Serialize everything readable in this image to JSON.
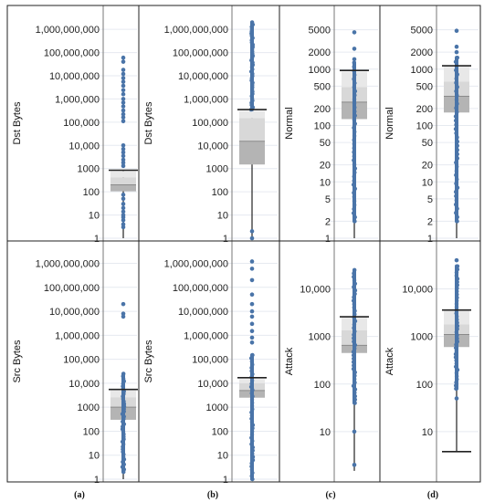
{
  "chart_data": [
    {
      "type": "box",
      "panel": "(a)",
      "ylabel": "Dst Bytes",
      "scale": "log",
      "ylim": [
        1,
        3000000000
      ],
      "ticks": [
        1,
        10,
        100,
        1000,
        10000,
        100000,
        1000000,
        10000000,
        100000000,
        1000000000
      ],
      "tick_labels": [
        "1",
        "10",
        "100",
        "1000",
        "10,000",
        "100,000",
        "1,000,000",
        "10,000,000",
        "100,000,000",
        "1,000,000,000"
      ],
      "grid": true,
      "box": {
        "whisker_low": 1,
        "q1": 105,
        "median": 200,
        "q3": 420,
        "whisker_high": 850,
        "light_top": 780
      },
      "outliers": [
        3,
        4,
        6,
        8,
        10,
        14,
        20,
        30,
        50,
        75,
        1300,
        1800,
        2400,
        3500,
        5000,
        7000,
        10000,
        110000,
        160000,
        220000,
        320000,
        480000,
        700000,
        1000000,
        1600000,
        2400000,
        3700000,
        5500000,
        8000000,
        12000000,
        18000000,
        40000000,
        60000000
      ]
    },
    {
      "type": "box",
      "panel": "(b)",
      "ylabel": "Dst Bytes",
      "scale": "log",
      "ylim": [
        1,
        3000000000
      ],
      "ticks": [
        1,
        10,
        100,
        1000,
        10000,
        100000,
        1000000,
        10000000,
        100000000,
        1000000000
      ],
      "tick_labels": [
        "1",
        "10",
        "100",
        "1000",
        "10,000",
        "100,000",
        "1,000,000",
        "10,000,000",
        "100,000,000",
        "1,000,000,000"
      ],
      "grid": true,
      "box": {
        "whisker_low": 1,
        "q1": 1500,
        "median": 15000,
        "q3": 150000,
        "whisker_high": 350000,
        "light_top": 300000
      },
      "outliers_dense_range": [
        350000,
        2000000000
      ],
      "outliers": [
        1,
        2
      ]
    },
    {
      "type": "box",
      "panel": "(c)",
      "ylabel": "Normal",
      "scale": "log",
      "ylim": [
        1,
        8000
      ],
      "ticks": [
        1,
        2,
        5,
        10,
        20,
        50,
        100,
        200,
        500,
        1000,
        2000,
        5000
      ],
      "tick_labels": [
        "1",
        "2",
        "5",
        "10",
        "20",
        "50",
        "100",
        "200",
        "500",
        "1000",
        "2000",
        "5000"
      ],
      "grid": true,
      "box": {
        "whisker_low": 1,
        "q1": 130,
        "median": 260,
        "q3": 480,
        "whisker_high": 950,
        "light_top": 900
      },
      "outliers_dense_range": [
        2,
        1300
      ],
      "outliers": [
        1500,
        2300,
        4500
      ]
    },
    {
      "type": "box",
      "panel": "(d)",
      "ylabel": "Normal",
      "scale": "log",
      "ylim": [
        1,
        8000
      ],
      "ticks": [
        1,
        2,
        5,
        10,
        20,
        50,
        100,
        200,
        500,
        1000,
        2000,
        5000
      ],
      "tick_labels": [
        "1",
        "2",
        "5",
        "10",
        "20",
        "50",
        "100",
        "200",
        "500",
        "1000",
        "2000",
        "5000"
      ],
      "grid": true,
      "box": {
        "whisker_low": 1,
        "q1": 170,
        "median": 330,
        "q3": 600,
        "whisker_high": 1150,
        "light_top": 1100
      },
      "outliers_dense_range": [
        2,
        1600
      ],
      "outliers": [
        2000,
        2500,
        4800
      ]
    },
    {
      "type": "box",
      "panel": "(a)",
      "ylabel": "Src Bytes",
      "scale": "log",
      "ylim": [
        1,
        3000000000
      ],
      "ticks": [
        1,
        10,
        100,
        1000,
        10000,
        100000,
        1000000,
        10000000,
        100000000,
        1000000000
      ],
      "tick_labels": [
        "1",
        "10",
        "100",
        "1000",
        "10,000",
        "100,000",
        "1,000,000",
        "10,000,000",
        "100,000,000",
        "1,000,000,000"
      ],
      "grid": true,
      "box": {
        "whisker_low": 1,
        "q1": 300,
        "median": 1000,
        "q3": 2600,
        "whisker_high": 5500,
        "light_top": 5000
      },
      "outliers_dense_range": [
        2,
        25000
      ],
      "outliers": [
        6000000,
        8000000,
        20000000
      ]
    },
    {
      "type": "box",
      "panel": "(b)",
      "ylabel": "Src Bytes",
      "scale": "log",
      "ylim": [
        1,
        3000000000
      ],
      "ticks": [
        1,
        10,
        100,
        1000,
        10000,
        100000,
        1000000,
        10000000,
        100000000,
        1000000000
      ],
      "tick_labels": [
        "1",
        "10",
        "100",
        "1000",
        "10,000",
        "100,000",
        "1,000,000",
        "10,000,000",
        "100,000,000",
        "1,000,000,000"
      ],
      "grid": true,
      "box": {
        "whisker_low": 1,
        "q1": 2500,
        "median": 5000,
        "q3": 10000,
        "whisker_high": 17000,
        "light_top": 15000
      },
      "outliers_dense_range": [
        1,
        150000
      ],
      "outliers": [
        500000,
        800000,
        1500000,
        3000000,
        6000000,
        10000000,
        20000000,
        50000000,
        200000000,
        600000000,
        1200000000
      ]
    },
    {
      "type": "box",
      "panel": "(c)",
      "ylabel": "Attack",
      "scale": "log",
      "ylim": [
        1,
        60000
      ],
      "ticks": [
        10,
        100,
        1000,
        10000
      ],
      "tick_labels": [
        "10",
        "100",
        "1000",
        "10,000"
      ],
      "grid": true,
      "box": {
        "whisker_low": 1.5,
        "q1": 450,
        "median": 650,
        "q3": 1350,
        "whisker_high": 2600,
        "light_top": 2500
      },
      "outliers_dense_range": [
        40,
        25000
      ],
      "outliers": [
        2,
        10
      ]
    },
    {
      "type": "box",
      "panel": "(d)",
      "ylabel": "Attack",
      "scale": "log",
      "ylim": [
        1,
        60000
      ],
      "ticks": [
        10,
        100,
        1000,
        10000
      ],
      "tick_labels": [
        "10",
        "100",
        "1000",
        "10,000"
      ],
      "grid": true,
      "box": {
        "whisker_low": 3.8,
        "q1": 600,
        "median": 1100,
        "q3": 1800,
        "whisker_high": 3600,
        "light_top": 3500,
        "cap_low": true
      },
      "outliers_dense_range": [
        80,
        30000
      ],
      "outliers": [
        50,
        40000
      ]
    }
  ],
  "colors": {
    "point": "#4a74a8",
    "point_dark": "#35597f",
    "box_dark": "#8a8a8a",
    "box_mid": "#b4b4b4",
    "box_light": "#d8d8d8",
    "box_lighter": "#e8e8e8",
    "grid": "#e6eaf0",
    "frame": "#222222"
  },
  "captions": [
    "(a)",
    "(b)",
    "(c)",
    "(d)"
  ]
}
